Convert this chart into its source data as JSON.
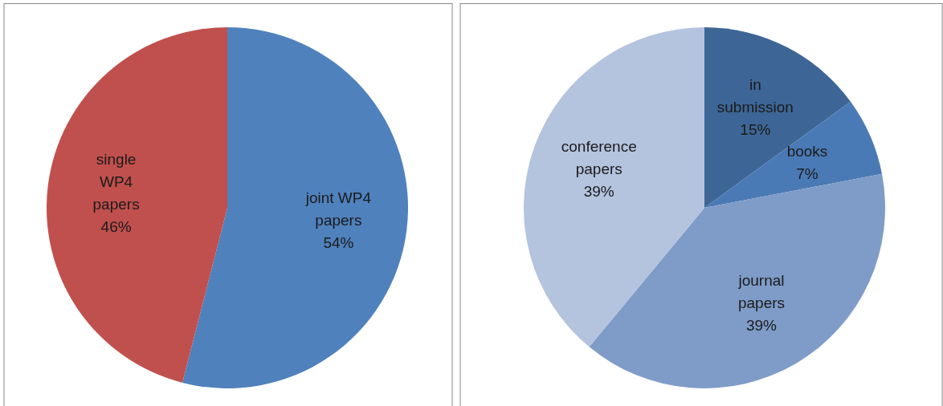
{
  "chart_data": [
    {
      "type": "pie",
      "categories": [
        "joint WP4 papers",
        "single WP4 papers"
      ],
      "values": [
        54,
        46
      ],
      "colors": [
        "#4f81bd",
        "#c0504d"
      ],
      "value_labels": [
        "54%",
        "46%"
      ]
    },
    {
      "type": "pie",
      "categories": [
        "in submission",
        "books",
        "journal papers",
        "conference papers"
      ],
      "values": [
        15,
        7,
        39,
        39
      ],
      "colors": [
        "#3d6696",
        "#4a7ab5",
        "#7f9cc8",
        "#b4c3de"
      ],
      "value_labels": [
        "15%",
        "7%",
        "39%",
        "39%"
      ]
    }
  ]
}
